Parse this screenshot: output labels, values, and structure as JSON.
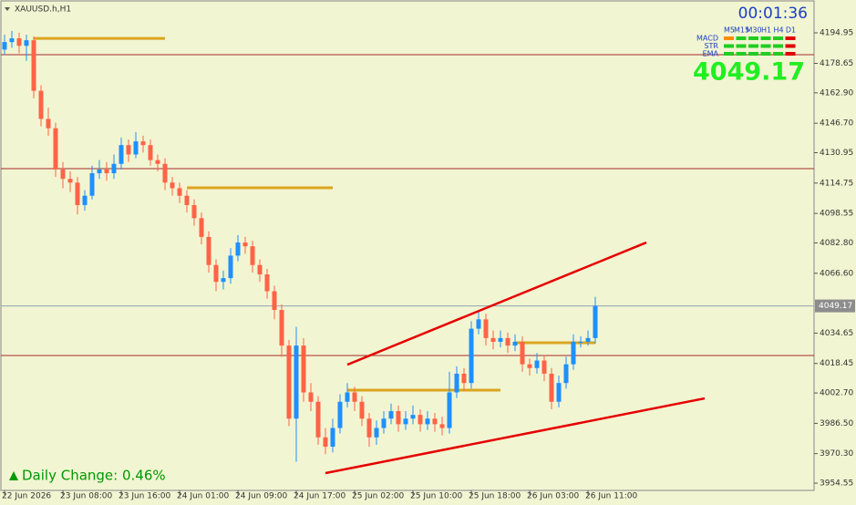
{
  "chart_data": {
    "type": "candlestick",
    "symbol": "XAUUSD.h,H1",
    "timer": "00:01:36",
    "timeframes": [
      "M5",
      "M15",
      "M30",
      "H1",
      "H4",
      "D1"
    ],
    "indicators": [
      "MACD",
      "STR",
      "EMA"
    ],
    "current_price": 4049.17,
    "daily_change": "Daily Change: 0.46%",
    "bull_color": "#1e90ff",
    "bear_color": "#ff6347",
    "ylim": [
      3949.7,
      4212.47
    ],
    "yticks": [
      4194.95,
      {
        "value": 4178.65,
        "label": "4178.65"
      },
      {
        "value": 4162.9,
        "label": "4162.90"
      },
      {
        "value": 4146.7,
        "label": "4146.70"
      },
      4130.95,
      4114.75,
      4098.55,
      {
        "value": 4082.8,
        "label": "4082.80"
      },
      {
        "value": 4066.6,
        "label": "4066.60"
      },
      4034.65,
      4018.45,
      {
        "value": 4002.7,
        "label": "4002.70"
      },
      {
        "value": 3986.5,
        "label": "3986.50"
      },
      {
        "value": 3970.3,
        "label": "3970.30"
      },
      3954.55
    ],
    "categories": [
      "22 Jun 2026",
      null,
      null,
      null,
      null,
      null,
      null,
      null,
      "23 Jun 08:00",
      null,
      null,
      null,
      null,
      null,
      null,
      null,
      "23 Jun 16:00",
      null,
      null,
      null,
      null,
      null,
      null,
      null,
      "24 Jun 01:00",
      null,
      null,
      null,
      null,
      null,
      null,
      null,
      "24 Jun 09:00",
      null,
      null,
      null,
      null,
      null,
      null,
      null,
      "24 Jun 17:00",
      null,
      null,
      null,
      null,
      null,
      null,
      null,
      "25 Jun 02:00",
      null,
      null,
      null,
      null,
      null,
      null,
      null,
      "25 Jun 10:00",
      null,
      null,
      null,
      null,
      null,
      null,
      null,
      "25 Jun 18:00",
      null,
      null,
      null,
      null,
      null,
      null,
      null,
      "26 Jun 03:00",
      null,
      null,
      null,
      null,
      null,
      null,
      null,
      "26 Jun 11:00",
      null
    ],
    "open": [
      4186,
      4190,
      4192,
      4188,
      4191,
      4164,
      4149,
      4144,
      4122,
      4117,
      4115,
      4103,
      4108,
      4120,
      4122,
      4120,
      4125,
      4135,
      4130,
      4137,
      4135,
      4127,
      4125,
      4115,
      4112,
      4108,
      4103,
      4096,
      4086,
      4071,
      4062,
      4064,
      4076,
      4083,
      4081,
      4071,
      4066,
      4057,
      4047,
      4028,
      3989,
      4028,
      4003,
      3998,
      3979,
      3974,
      3984,
      3998,
      4003,
      3998,
      3989,
      3979,
      3984,
      3989,
      3993,
      3986,
      3989,
      3991,
      3986,
      3989,
      3986,
      3984,
      4003,
      4013,
      4008,
      4037,
      4042,
      4032,
      4030,
      4032,
      4028,
      4030,
      4018,
      4016,
      4020,
      4013,
      3998,
      4008,
      4018,
      4030,
      4030,
      4032
    ],
    "high": [
      4194,
      4196,
      4195,
      4194,
      4193,
      4167,
      4155,
      4147,
      4126,
      4121,
      4118,
      4111,
      4124,
      4127,
      4126,
      4130,
      4139,
      4138,
      4142,
      4140,
      4138,
      4130,
      4128,
      4118,
      4115,
      4111,
      4106,
      4099,
      4089,
      4074,
      4068,
      4080,
      4087,
      4086,
      4084,
      4074,
      4069,
      4060,
      4050,
      4031,
      4038,
      4032,
      4008,
      4001,
      3984,
      3989,
      4002,
      4008,
      4006,
      4001,
      3992,
      3988,
      3993,
      3997,
      3996,
      3993,
      3996,
      3994,
      3993,
      3992,
      3990,
      4014,
      4017,
      4016,
      4041,
      4046,
      4045,
      4036,
      4036,
      4035,
      4034,
      4033,
      4021,
      4024,
      4023,
      4016,
      4012,
      4022,
      4034,
      4033,
      4036,
      4054
    ],
    "low": [
      4183,
      4187,
      4184,
      4180,
      4160,
      4145,
      4140,
      4118,
      4112,
      4110,
      4098,
      4100,
      4106,
      4117,
      4116,
      4117,
      4122,
      4126,
      4128,
      4131,
      4124,
      4121,
      4111,
      4108,
      4104,
      4099,
      4092,
      4082,
      4067,
      4057,
      4058,
      4061,
      4073,
      4077,
      4067,
      4062,
      4053,
      4042,
      4022,
      3985,
      3966,
      3998,
      3993,
      3975,
      3970,
      3971,
      3981,
      3995,
      3993,
      3985,
      3974,
      3975,
      3981,
      3986,
      3982,
      3983,
      3986,
      3982,
      3983,
      3982,
      3980,
      3981,
      4000,
      4004,
      4005,
      4034,
      4028,
      4026,
      4027,
      4024,
      4025,
      4014,
      4012,
      4013,
      4009,
      3994,
      3995,
      4005,
      4015,
      4027,
      4028,
      4029
    ],
    "close": [
      4190,
      4192,
      4188,
      4191,
      4164,
      4149,
      4144,
      4122,
      4117,
      4115,
      4103,
      4108,
      4120,
      4122,
      4120,
      4125,
      4135,
      4130,
      4137,
      4135,
      4127,
      4125,
      4115,
      4112,
      4108,
      4103,
      4096,
      4086,
      4071,
      4062,
      4064,
      4076,
      4083,
      4081,
      4071,
      4066,
      4057,
      4047,
      4028,
      3989,
      4028,
      4003,
      3998,
      3979,
      3974,
      3984,
      3998,
      4003,
      3998,
      3989,
      3979,
      3984,
      3989,
      3993,
      3986,
      3989,
      3991,
      3986,
      3989,
      3986,
      3984,
      4003,
      4013,
      4008,
      4037,
      4042,
      4032,
      4030,
      4032,
      4028,
      4030,
      4018,
      4016,
      4020,
      4013,
      3998,
      4008,
      4018,
      4030,
      4030,
      4032,
      4049.17
    ],
    "horizontal_lines": [
      4183.27,
      4122.45,
      4022.7
    ],
    "levels": [
      {
        "x": [
          4,
          22
        ],
        "y": 4192
      },
      {
        "x": [
          25,
          45
        ],
        "y": 4112.2
      },
      {
        "x": [
          47,
          68
        ],
        "y": 4004.2
      },
      {
        "x": [
          70,
          81
        ],
        "y": 4029.5
      }
    ],
    "trendlines": [
      {
        "x": [
          47,
          88
        ],
        "y": [
          4017.8,
          4083
        ]
      },
      {
        "x": [
          44,
          96
        ],
        "y": [
          3959.9,
          3999.8
        ]
      }
    ]
  }
}
